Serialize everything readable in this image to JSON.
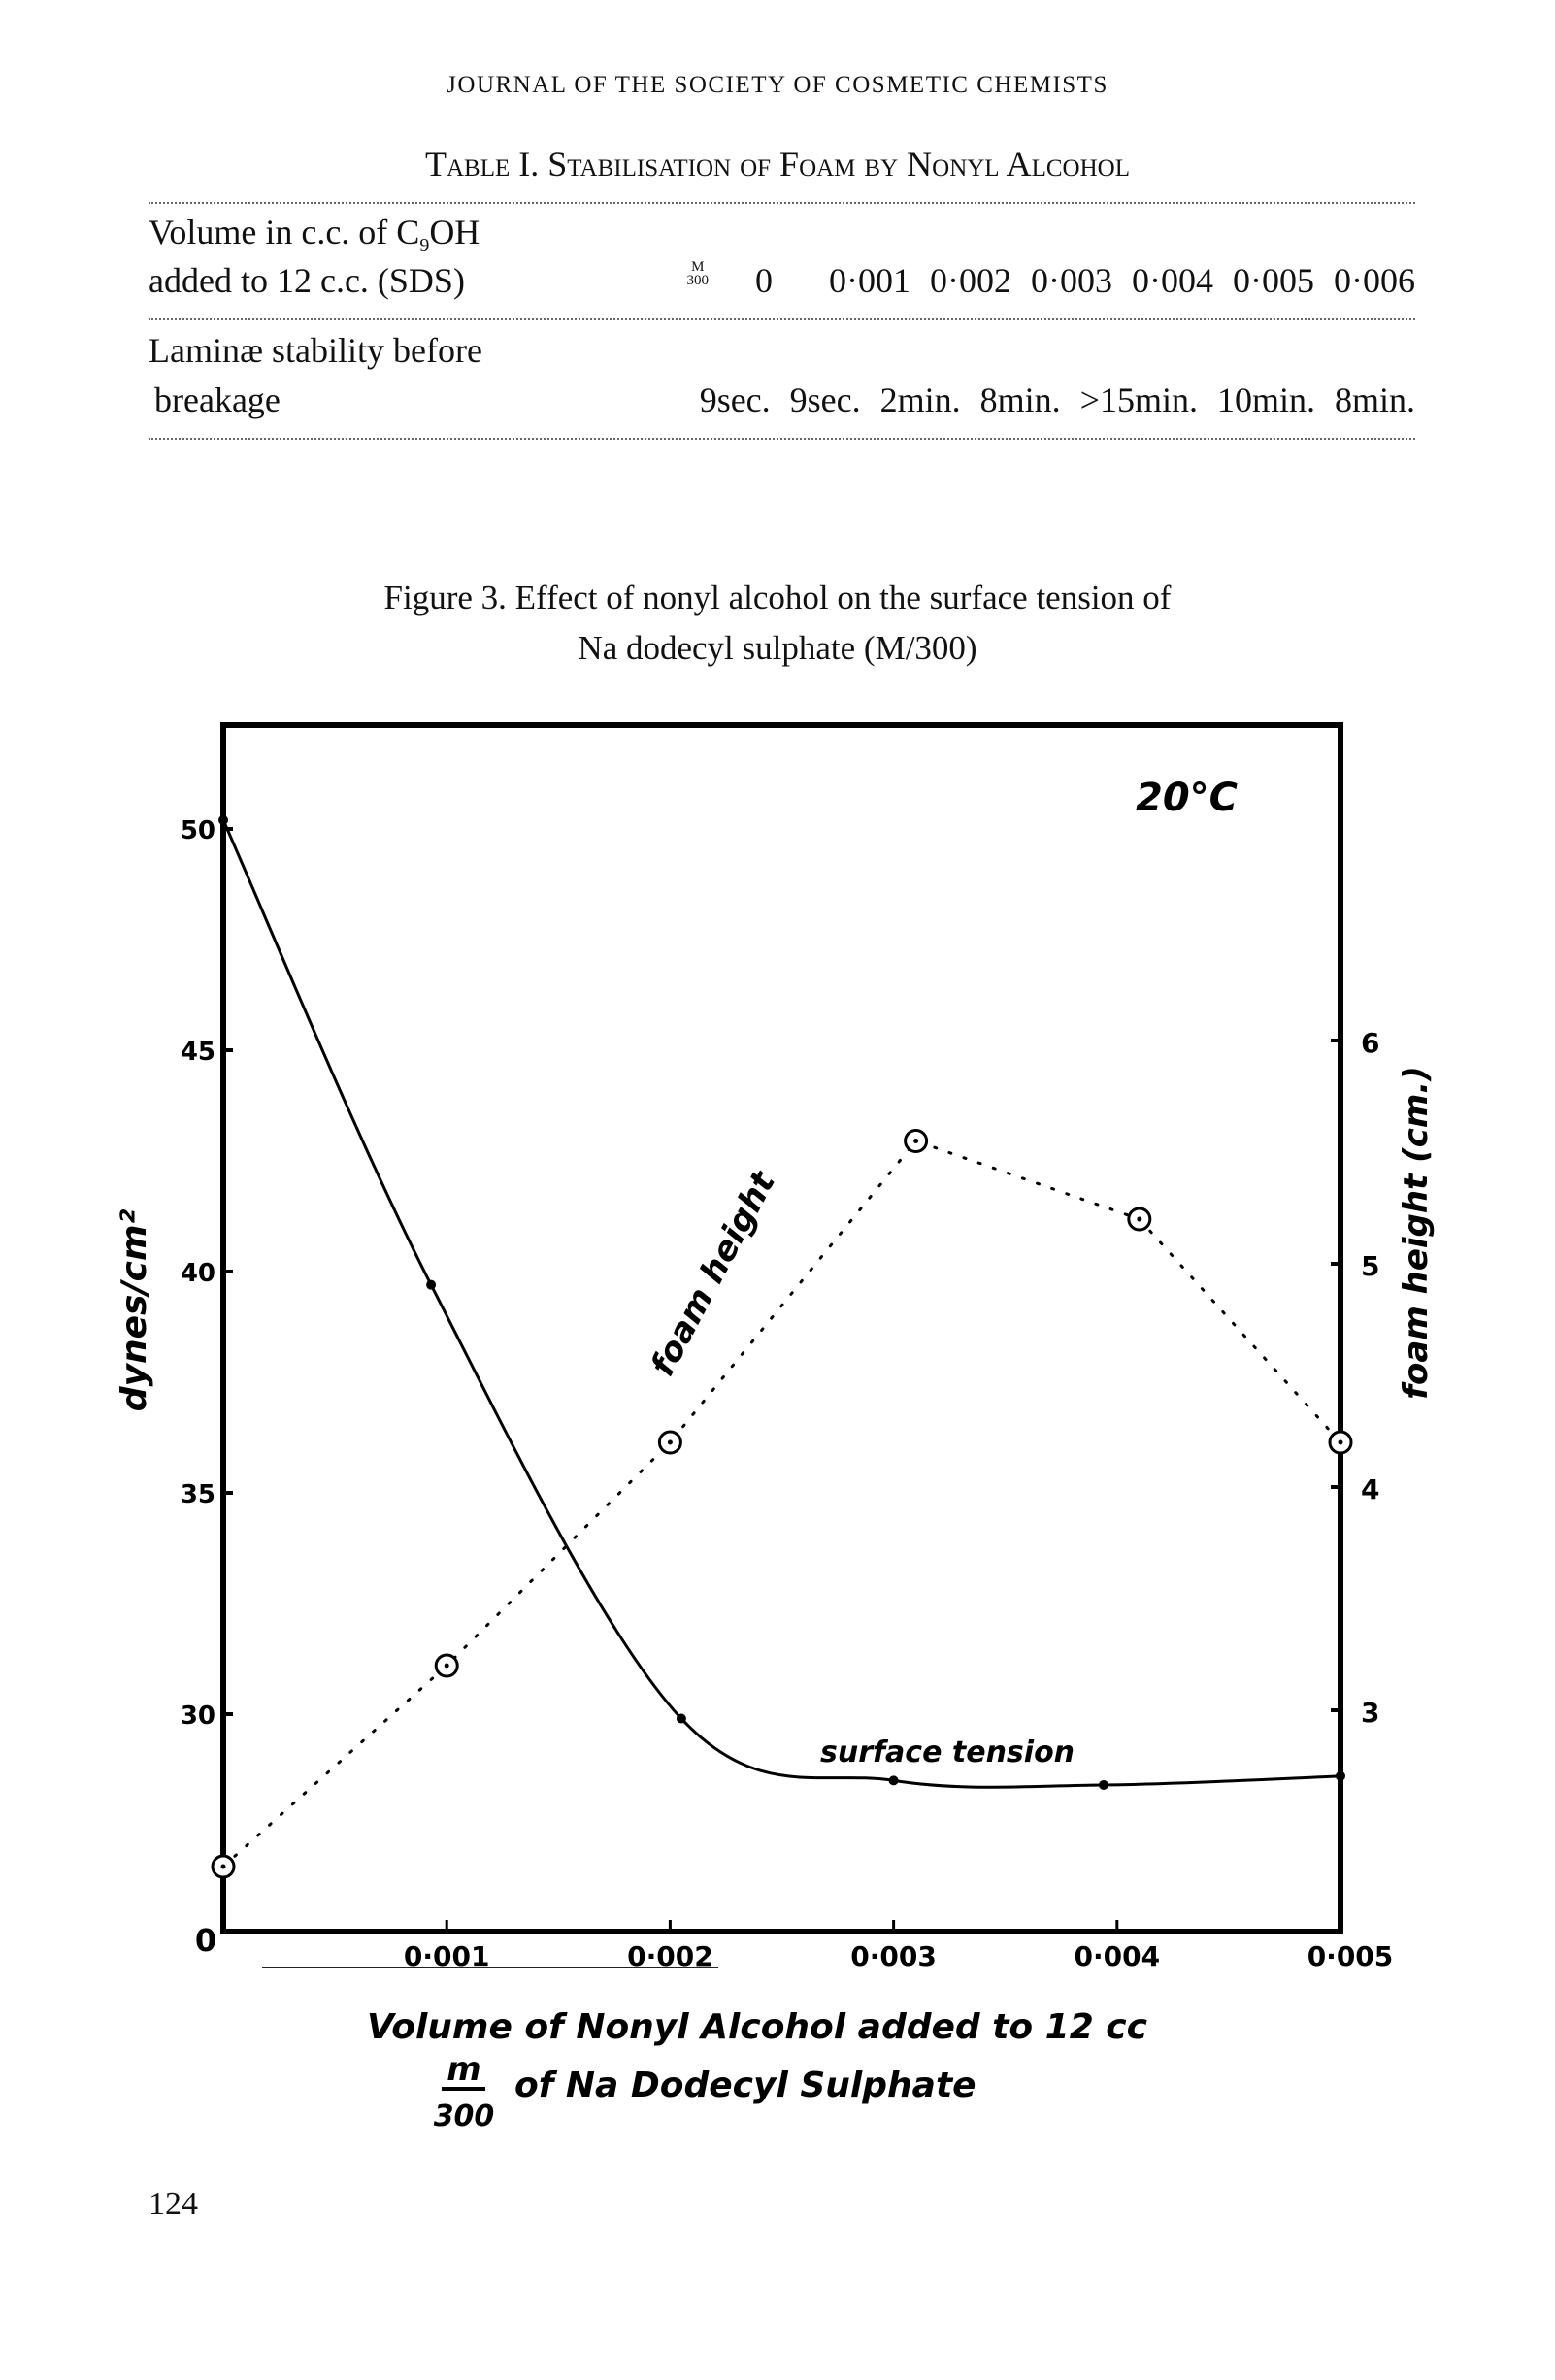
{
  "header": {
    "journal": "JOURNAL OF THE SOCIETY OF COSMETIC CHEMISTS"
  },
  "table": {
    "title": "Table I. Stabilisation of Foam by Nonyl Alcohol",
    "row1_label_line1": "Volume  in  c.c.  of  C",
    "row1_label_sub": "9",
    "row1_label_line1_end": "OH",
    "row1_label_line2": "added to 12 c.c. (SDS)",
    "row1_fraction_num": "M",
    "row1_fraction_den": "300",
    "row1_values": [
      "0",
      "0·001",
      "0·002",
      "0·003",
      "0·004",
      "0·005",
      "0·006"
    ],
    "row2_label_line1": "Laminæ  stability before",
    "row2_label_line2": "breakage",
    "row2_values": [
      "9sec.",
      "9sec.",
      "2min.",
      "8min.",
      ">15min.",
      "10min.",
      "8min."
    ]
  },
  "figure": {
    "caption_line1": "Figure 3.  Effect of nonyl alcohol on the surface tension of",
    "caption_line2": "Na  dodecyl  sulphate  (M/300)"
  },
  "chart_data": {
    "type": "line",
    "annotation_temperature": "20°C",
    "xlabel_line1": "Volume of Nonyl Alcohol added to 12 cc",
    "xlabel_frac_num": "m",
    "xlabel_frac_den": "300",
    "xlabel_line2": "of Na Dodecyl Sulphate",
    "ylabel_left": "dynes/cm²",
    "ylabel_right": "foam height (cm.)",
    "x_ticks": [
      {
        "value": 0,
        "label": "0"
      },
      {
        "value": 0.001,
        "label": "0·001"
      },
      {
        "value": 0.002,
        "label": "0·002"
      },
      {
        "value": 0.003,
        "label": "0·003"
      },
      {
        "value": 0.004,
        "label": "0·004"
      },
      {
        "value": 0.005,
        "label": "0·005"
      }
    ],
    "xlim": [
      0,
      0.005
    ],
    "y_left_ticks": [
      {
        "value": 50,
        "label": "50"
      },
      {
        "value": 45,
        "label": "45"
      },
      {
        "value": 40,
        "label": "40"
      },
      {
        "value": 35,
        "label": "35"
      },
      {
        "value": 30,
        "label": "30"
      }
    ],
    "y_right_ticks": [
      {
        "value": 6,
        "label": "6"
      },
      {
        "value": 5,
        "label": "5"
      },
      {
        "value": 4,
        "label": "4"
      },
      {
        "value": 3,
        "label": "3"
      }
    ],
    "grid": false,
    "series": [
      {
        "name": "surface tension",
        "axis": "left",
        "style": "solid",
        "x": [
          0,
          0.00093,
          0.00205,
          0.003,
          0.00394,
          0.005
        ],
        "y": [
          50.2,
          39.7,
          29.9,
          28.5,
          28.4,
          28.6
        ]
      },
      {
        "name": "foam height",
        "axis": "right",
        "style": "dotted",
        "marker": "circle",
        "x": [
          0,
          0.001,
          0.002,
          0.0031,
          0.0041,
          0.005
        ],
        "y": [
          2.3,
          3.2,
          4.2,
          5.55,
          5.2,
          4.2
        ]
      }
    ]
  },
  "page": {
    "number": "124"
  }
}
